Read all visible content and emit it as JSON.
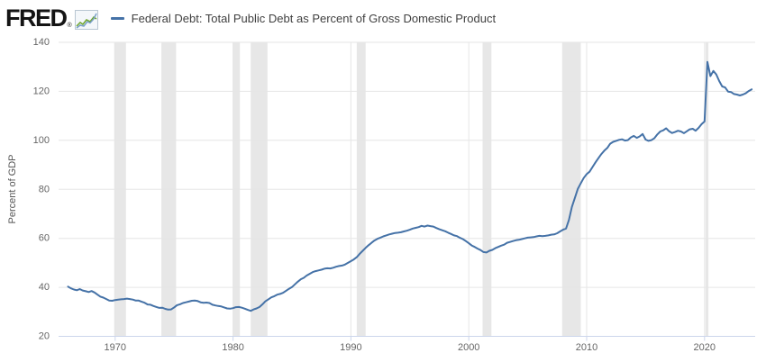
{
  "header": {
    "logo_text": "FRED",
    "registered_mark": "®",
    "logo_icon": "fred-sparkline-icon"
  },
  "legend": {
    "marker_color": "#4572a7",
    "series_label": "Federal Debt: Total Public Debt as Percent of Gross Domestic Product"
  },
  "chart_data": {
    "type": "line",
    "title": "Federal Debt: Total Public Debt as Percent of Gross Domestic Product",
    "series_name": "Federal Debt: Total Public Debt as Percent of Gross Domestic Product",
    "xlabel": "",
    "ylabel": "Percent of GDP",
    "frequency": "quarterly",
    "x_start_year": 1966,
    "x_step_years": 0.25,
    "xlim": [
      1965.2,
      2024.3
    ],
    "ylim": [
      20,
      140
    ],
    "x_ticks": [
      1970,
      1980,
      1990,
      2000,
      2010,
      2020
    ],
    "y_ticks": [
      20,
      40,
      60,
      80,
      100,
      120,
      140
    ],
    "grid": true,
    "legend_position": "top",
    "line_color": "#4572a7",
    "gridline_color": "#e6e6e6",
    "axis_line_color": "#ccd6eb",
    "tick_label_color": "#666666",
    "axis_title_color": "#555555",
    "recession_bands_color": "#e7e7e7",
    "recession_bands": [
      [
        1969.92,
        1970.92
      ],
      [
        1973.92,
        1975.17
      ],
      [
        1980.0,
        1980.58
      ],
      [
        1981.5,
        1982.92
      ],
      [
        1990.5,
        1991.25
      ],
      [
        2001.17,
        2001.92
      ],
      [
        2007.92,
        2009.5
      ],
      [
        2020.08,
        2020.33
      ]
    ],
    "values": [
      40.3,
      39.6,
      39.1,
      38.8,
      39.3,
      38.7,
      38.4,
      38.1,
      38.5,
      37.9,
      37.0,
      36.2,
      35.8,
      35.2,
      34.6,
      34.5,
      34.8,
      35.0,
      35.1,
      35.2,
      35.4,
      35.2,
      35.0,
      34.6,
      34.6,
      34.1,
      33.7,
      33.0,
      32.9,
      32.4,
      32.0,
      31.6,
      31.7,
      31.2,
      30.9,
      31.0,
      31.8,
      32.7,
      33.1,
      33.6,
      33.9,
      34.2,
      34.5,
      34.6,
      34.4,
      33.9,
      33.7,
      33.8,
      33.6,
      32.9,
      32.6,
      32.4,
      32.2,
      31.8,
      31.4,
      31.3,
      31.5,
      31.9,
      32.0,
      31.7,
      31.3,
      30.8,
      30.4,
      31.0,
      31.4,
      32.0,
      33.1,
      34.3,
      35.1,
      35.9,
      36.4,
      37.0,
      37.3,
      37.8,
      38.6,
      39.4,
      40.1,
      41.2,
      42.3,
      43.3,
      43.9,
      44.8,
      45.5,
      46.2,
      46.6,
      46.9,
      47.2,
      47.6,
      47.8,
      47.7,
      48.0,
      48.4,
      48.7,
      48.9,
      49.3,
      50.0,
      50.7,
      51.4,
      52.3,
      53.7,
      54.9,
      56.1,
      57.2,
      58.2,
      59.1,
      59.8,
      60.3,
      60.8,
      61.2,
      61.6,
      61.9,
      62.2,
      62.3,
      62.5,
      62.8,
      63.1,
      63.5,
      64.0,
      64.3,
      64.6,
      65.1,
      64.8,
      65.2,
      65.0,
      64.8,
      64.2,
      63.7,
      63.3,
      62.9,
      62.3,
      61.8,
      61.2,
      60.9,
      60.2,
      59.7,
      58.9,
      58.0,
      57.1,
      56.5,
      55.8,
      55.2,
      54.4,
      54.2,
      54.9,
      55.3,
      56.0,
      56.5,
      57.0,
      57.4,
      58.2,
      58.5,
      58.9,
      59.2,
      59.4,
      59.7,
      60.0,
      60.3,
      60.4,
      60.5,
      60.8,
      61.0,
      60.9,
      61.0,
      61.2,
      61.5,
      61.6,
      62.1,
      62.8,
      63.5,
      64.0,
      67.5,
      72.8,
      76.5,
      80.2,
      82.4,
      84.6,
      86.2,
      87.2,
      89.1,
      91.0,
      92.7,
      94.4,
      95.8,
      96.9,
      98.6,
      99.4,
      99.8,
      100.2,
      100.4,
      99.9,
      100.1,
      101.2,
      101.8,
      101.0,
      101.6,
      102.6,
      100.3,
      99.8,
      100.1,
      100.9,
      102.4,
      103.6,
      104.1,
      104.9,
      103.7,
      103.0,
      103.4,
      103.9,
      103.6,
      102.9,
      103.7,
      104.5,
      104.7,
      103.9,
      105.1,
      106.6,
      107.7,
      132.0,
      126.2,
      128.3,
      126.9,
      124.2,
      122.0,
      121.6,
      119.9,
      119.7,
      118.9,
      118.7,
      118.3,
      118.7,
      119.2,
      120.1,
      120.8
    ]
  }
}
